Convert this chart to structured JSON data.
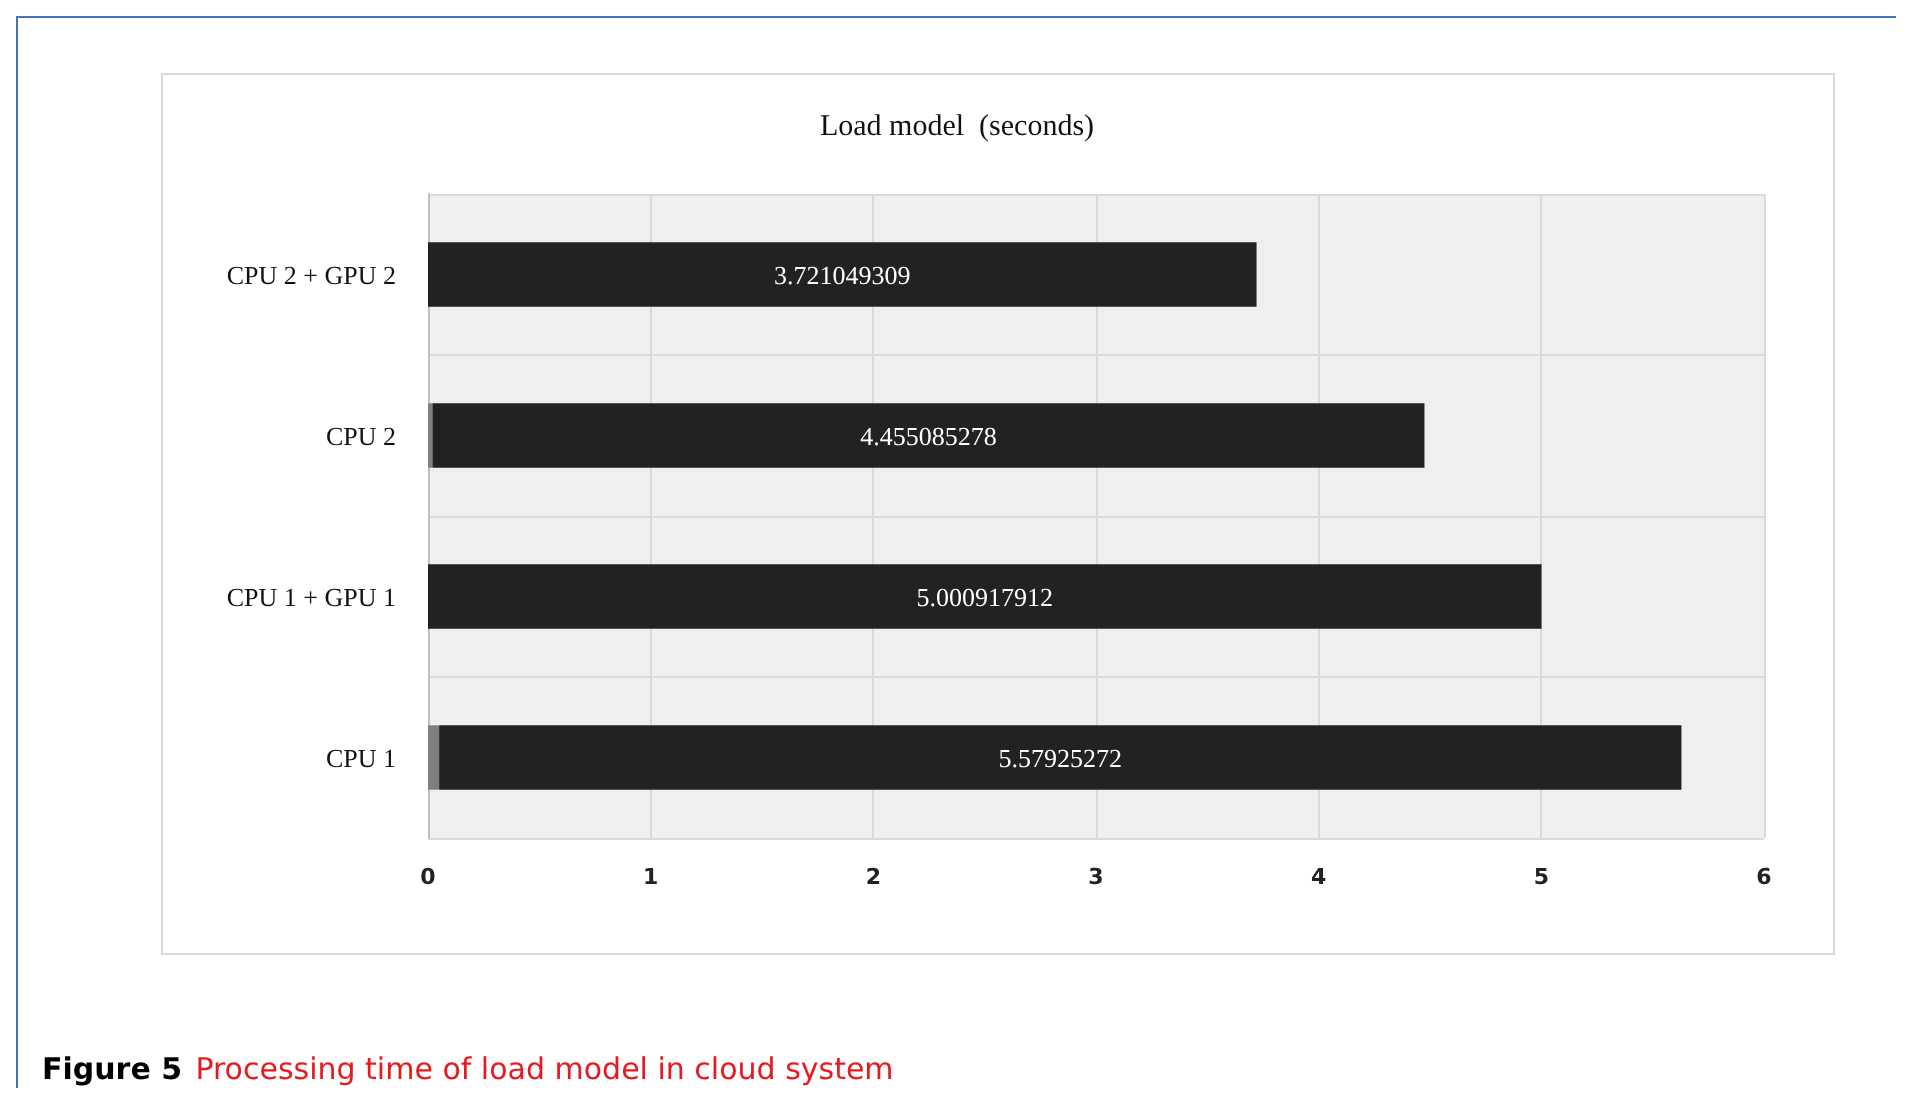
{
  "chart_data": {
    "type": "bar",
    "orientation": "horizontal",
    "stacked": true,
    "title": "Load model  (seconds)",
    "categories": [
      "CPU 2 + GPU 2",
      "CPU 2",
      "CPU 1 + GPU 1",
      "CPU 1"
    ],
    "series": [
      {
        "color": "#7f7f7f",
        "values": [
          null,
          0.02,
          null,
          0.05
        ]
      },
      {
        "color": "#222222",
        "values": [
          3.721049309,
          4.455085278,
          5.000917912,
          5.57925272
        ],
        "value_labels": [
          "3.721049309",
          "4.455085278",
          "5.000917912",
          "5.57925272"
        ]
      }
    ],
    "xlim": [
      0,
      6
    ],
    "xticks": [
      0,
      1,
      2,
      3,
      4,
      5,
      6
    ],
    "grid": true,
    "annotations": [
      "Figure 5",
      "Processing time of load model in cloud system"
    ]
  }
}
